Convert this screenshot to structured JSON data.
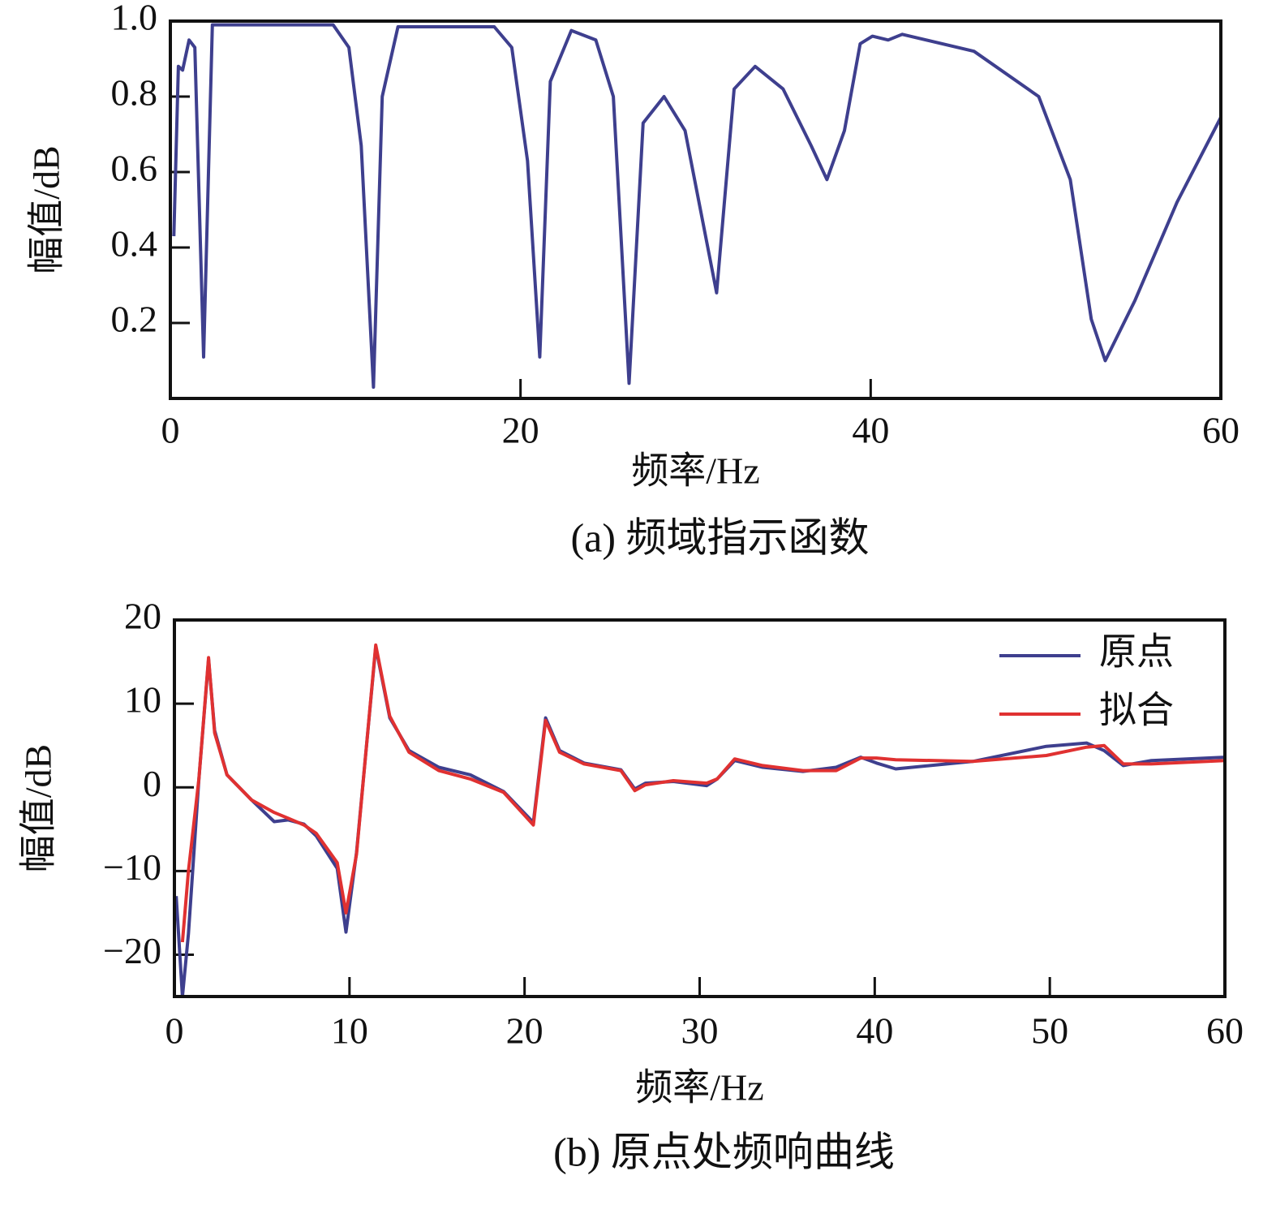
{
  "chart_data": [
    {
      "type": "line",
      "caption": "(a) 频域指示函数",
      "xlabel": "频率/Hz",
      "ylabel": "幅值/dB",
      "x": [
        0.2,
        0.46,
        0.7,
        1.07,
        1.4,
        1.9,
        2.4,
        5,
        9.3,
        10.2,
        10.9,
        11.6,
        12.1,
        13.0,
        18.5,
        19.5,
        20.4,
        21.1,
        21.7,
        22.9,
        24.3,
        25.3,
        26.2,
        27.0,
        28.2,
        29.4,
        31.2,
        32.2,
        33.4,
        35.0,
        36.6,
        37.5,
        38.5,
        39.4,
        40.1,
        41.0,
        41.8,
        45.9,
        49.6,
        51.4,
        52.6,
        53.4,
        55.1,
        57.5,
        60
      ],
      "series": [
        {
          "name": "频域指示函数",
          "color": "#3e3f8e",
          "values": [
            0.43,
            0.88,
            0.87,
            0.95,
            0.93,
            0.11,
            0.99,
            0.99,
            0.99,
            0.93,
            0.67,
            0.03,
            0.8,
            0.985,
            0.985,
            0.93,
            0.63,
            0.11,
            0.84,
            0.975,
            0.95,
            0.8,
            0.04,
            0.73,
            0.8,
            0.71,
            0.28,
            0.82,
            0.88,
            0.82,
            0.67,
            0.58,
            0.71,
            0.94,
            0.96,
            0.95,
            0.965,
            0.92,
            0.8,
            0.58,
            0.21,
            0.1,
            0.26,
            0.52,
            0.745
          ]
        }
      ],
      "xlim": [
        0,
        60
      ],
      "xticks": [
        0,
        20,
        40,
        60
      ],
      "ylim": [
        0,
        1
      ],
      "yticks": [
        0.2,
        0.4,
        0.6,
        0.8,
        {
          "value": 1,
          "label": "1.0"
        }
      ],
      "grid": false
    },
    {
      "type": "line",
      "caption": "(b) 原点处频响曲线",
      "xlabel": "频率/Hz",
      "ylabel": "幅值/dB",
      "legend": "upper right",
      "x": [
        0.1,
        0.46,
        0.8,
        1.4,
        1.95,
        2.3,
        3.0,
        4.4,
        5.7,
        6.5,
        7.4,
        8.1,
        9.3,
        9.8,
        10.4,
        11.5,
        12.3,
        13.4,
        15.1,
        16.9,
        18.8,
        20.5,
        21.2,
        22.0,
        23.4,
        25.5,
        26.3,
        26.9,
        28.5,
        30.4,
        31.0,
        32.0,
        33.6,
        35.9,
        37.8,
        39.2,
        40.1,
        41.2,
        45.6,
        49.8,
        52.1,
        53.1,
        54.2,
        55.8,
        60
      ],
      "series": [
        {
          "name": "原点",
          "color": "#3e3f8e",
          "values": [
            -13,
            -25,
            -17.5,
            1,
            15.3,
            6.8,
            1.5,
            -1.5,
            -4.1,
            -3.9,
            -4.4,
            -5.8,
            -9.7,
            -17.3,
            -7.8,
            16.8,
            8.3,
            4.4,
            2.4,
            1.5,
            -0.5,
            -4.2,
            8.3,
            4.4,
            2.9,
            2.1,
            -0.2,
            0.5,
            0.7,
            0.2,
            1.0,
            3.2,
            2.4,
            1.9,
            2.4,
            3.6,
            2.9,
            2.2,
            3.1,
            4.9,
            5.3,
            4.4,
            2.6,
            3.2,
            3.6
          ]
        },
        {
          "name": "拟合",
          "color": "#e03131",
          "values": [
            null,
            -18.5,
            -10,
            1,
            15.5,
            6.5,
            1.5,
            -1.5,
            -3.0,
            -3.7,
            -4.5,
            -5.5,
            -9,
            -15,
            -8,
            17,
            8.5,
            4.2,
            2.0,
            1.0,
            -0.6,
            -4.5,
            8.0,
            4.2,
            2.8,
            2.0,
            -0.4,
            0.3,
            0.8,
            0.5,
            1.0,
            3.4,
            2.6,
            2.0,
            2.0,
            3.5,
            3.5,
            3.3,
            3.1,
            3.8,
            4.8,
            5.0,
            2.8,
            2.8,
            3.2
          ]
        }
      ],
      "xlim": [
        0,
        60
      ],
      "xticks": [
        0,
        10,
        20,
        30,
        40,
        50,
        60
      ],
      "ylim": [
        -25,
        20
      ],
      "yticks": [
        {
          "value": -20,
          "label": "−20"
        },
        {
          "value": -10,
          "label": "−10"
        },
        0,
        10,
        20
      ],
      "grid": false
    }
  ]
}
